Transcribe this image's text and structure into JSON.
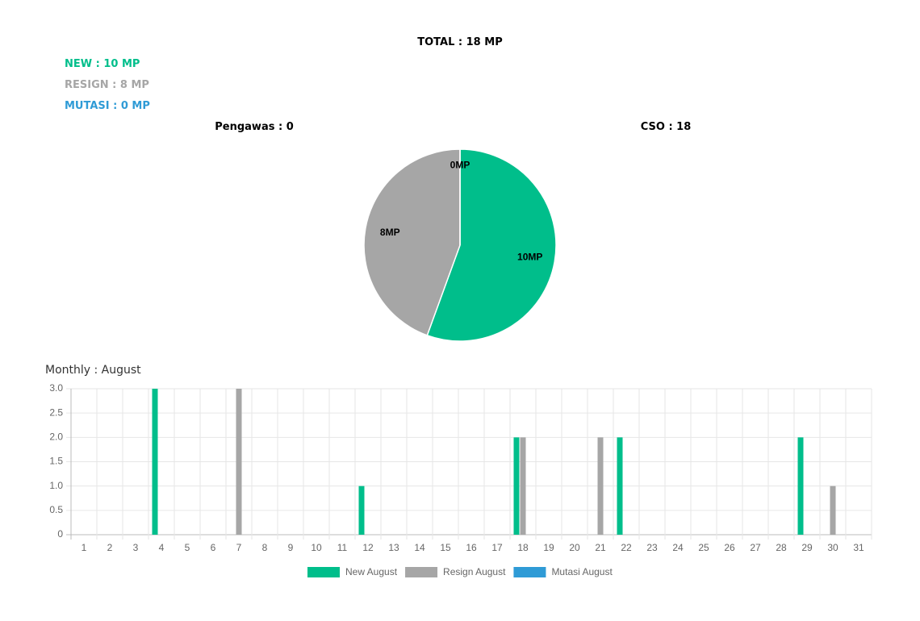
{
  "summary": {
    "total": "TOTAL : 18 MP",
    "new": "NEW : 10 MP",
    "resign": "RESIGN : 8 MP",
    "mutasi": "MUTASI : 0 MP",
    "pengawas": "Pengawas : 0",
    "cso": "CSO : 18"
  },
  "chart_data": [
    {
      "type": "pie",
      "values": [
        10,
        8,
        0
      ],
      "value_labels": [
        "10MP",
        "8MP",
        "0MP"
      ],
      "colors": [
        "#00be8b",
        "#a6a6a6",
        "#2f9bd6"
      ]
    },
    {
      "type": "bar",
      "title": "Monthly : August",
      "categories": [
        "1",
        "2",
        "3",
        "4",
        "5",
        "6",
        "7",
        "8",
        "9",
        "10",
        "11",
        "12",
        "13",
        "14",
        "15",
        "16",
        "17",
        "18",
        "19",
        "20",
        "21",
        "22",
        "23",
        "24",
        "25",
        "26",
        "27",
        "28",
        "29",
        "30",
        "31"
      ],
      "series": [
        {
          "name": "New August",
          "color": "#00be8b",
          "values": [
            0,
            0,
            0,
            3,
            0,
            0,
            0,
            0,
            0,
            0,
            0,
            1,
            0,
            0,
            0,
            0,
            0,
            2,
            0,
            0,
            0,
            2,
            0,
            0,
            0,
            0,
            0,
            0,
            2,
            0,
            0
          ]
        },
        {
          "name": "Resign August",
          "color": "#a6a6a6",
          "values": [
            0,
            0,
            0,
            0,
            0,
            0,
            3,
            0,
            0,
            0,
            0,
            0,
            0,
            0,
            0,
            0,
            0,
            2,
            0,
            0,
            2,
            0,
            0,
            0,
            0,
            0,
            0,
            0,
            0,
            1,
            0
          ]
        },
        {
          "name": "Mutasi August",
          "color": "#2f9bd6",
          "values": [
            0,
            0,
            0,
            0,
            0,
            0,
            0,
            0,
            0,
            0,
            0,
            0,
            0,
            0,
            0,
            0,
            0,
            0,
            0,
            0,
            0,
            0,
            0,
            0,
            0,
            0,
            0,
            0,
            0,
            0,
            0
          ]
        }
      ],
      "ylim": [
        0,
        3
      ],
      "yticks": [
        0,
        0.5,
        {
          "value": 1,
          "label": "1.0"
        },
        1.5,
        {
          "value": 2,
          "label": "2.0"
        },
        2.5,
        {
          "value": 3,
          "label": "3.0"
        }
      ],
      "grid": true,
      "legend": "bottom"
    }
  ]
}
